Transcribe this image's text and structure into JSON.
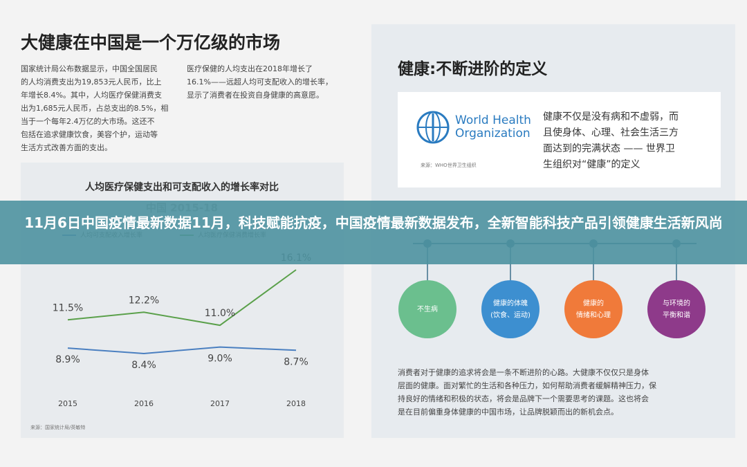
{
  "left": {
    "title": "大健康在中国是一个万亿级的市场",
    "col1": [
      "国家统计局公布数据显示，中国全国居民",
      "的人均消费支出为19,853元人民币，比上",
      "年增长8.4%。其中，人均医疗保健消费支",
      "出为1,685元人民币，占总支出的8.5%，相",
      "当于一个每年2.4万亿的大市场。这还不",
      "包括在追求健康饮食，美容个护，运动等",
      "生活方式改善方面的支出。"
    ],
    "col2": [
      "医疗保健的人均支出在2018年增长了",
      "16.1%——远超人均可支配收入的增长率，",
      "显示了消费者在投资自身健康的高意愿。"
    ]
  },
  "chart_data": {
    "type": "line",
    "title": "人均医疗保健支出和可支配收入的增长率对比",
    "subtitle": "中国 2015-18",
    "categories": [
      "2015",
      "2016",
      "2017",
      "2018"
    ],
    "series": [
      {
        "name": "人均可支配收入增长率",
        "color": "#4a7fc0",
        "values": [
          8.9,
          8.4,
          9.0,
          8.7
        ],
        "value_labels": [
          "8.9%",
          "8.4%",
          "9.0%",
          "8.7%"
        ]
      },
      {
        "name": "人均医疗保健消费增长率",
        "color": "#5aa04a",
        "values": [
          11.5,
          12.2,
          11.0,
          16.1
        ],
        "value_labels": [
          "11.5%",
          "12.2%",
          "11.0%",
          "16.1%"
        ]
      }
    ],
    "source": "来源：国家统计局/英敏特"
  },
  "right": {
    "title": "健康:不断进阶的定义",
    "who": [
      "World Health",
      "Organization"
    ],
    "who_source": "来源：WHO世界卫生组织",
    "definition": [
      "健康不仅是没有病和不虚弱，而",
      "且使身体、心理、社会生活三方",
      "面达到的完满状态 —— 世界卫",
      "生组织对“健康”的定义"
    ],
    "stages": [
      [
        "不生病"
      ],
      [
        "健康的体魄",
        "(饮食、运动)"
      ],
      [
        "健康的",
        "情绪和心理"
      ],
      [
        "与环境的",
        "平衡和谐"
      ]
    ],
    "paragraph": [
      "消费者对于健康的追求将会是一条不断进阶的心路。大健康不仅仅只是身体",
      "层面的健康。面对繁忙的生活和各种压力，如何帮助消费者缓解精神压力，保",
      "持良好的情绪和积极的状态，将会是品牌下一个需要思考的课题。这也将会",
      "是在目前偏重身体健康的中国市场，让品牌脱颖而出的新机会点。"
    ]
  },
  "banner": "11月6日中国疫情最新数据11月，科技赋能抗疫，中国疫情最新数据发布，全新智能科技产品引领健康生活新风尚"
}
